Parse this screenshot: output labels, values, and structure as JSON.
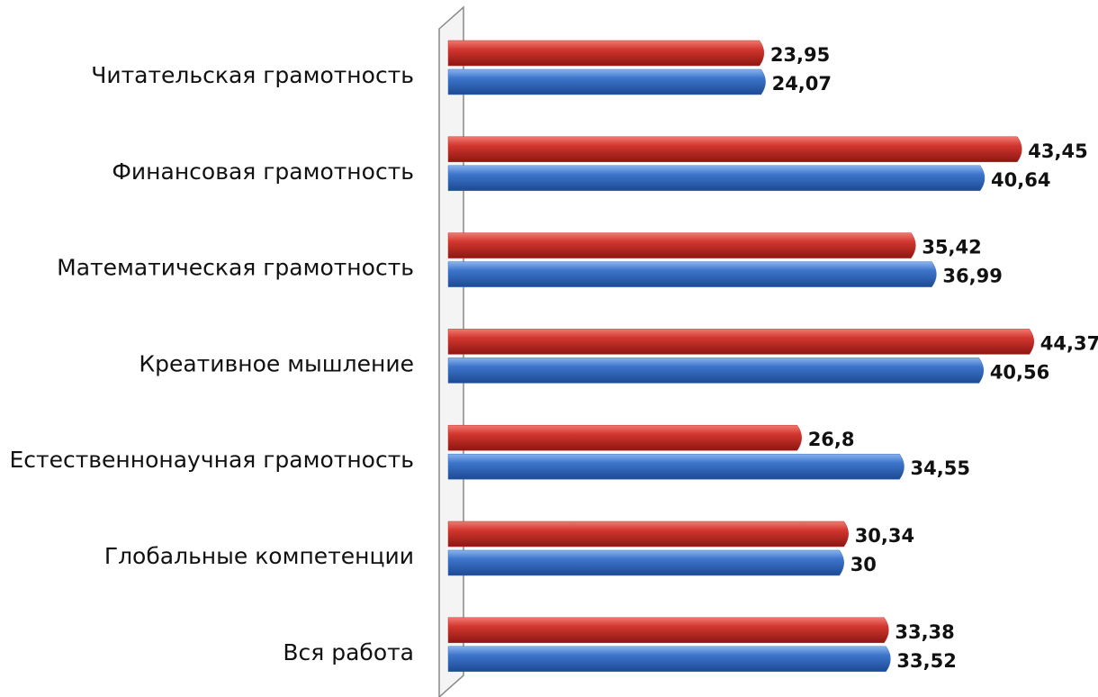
{
  "chart_data": {
    "type": "bar",
    "orientation": "horizontal",
    "categories": [
      "Читательская грамотность",
      "Финансовая грамотность",
      "Математическая грамотность",
      "Креативное мышление",
      "Естественнонаучная грамотность",
      "Глобальные компетенции",
      "Вся работа"
    ],
    "series": [
      {
        "color": "#c9302c",
        "values": [
          23.95,
          43.45,
          35.42,
          44.37,
          26.8,
          30.34,
          33.38
        ],
        "value_labels": [
          "23,95",
          "43,45",
          "35,42",
          "44,37",
          "26,8",
          "30,34",
          "33,38"
        ]
      },
      {
        "color": "#3b72c6",
        "values": [
          24.07,
          40.64,
          36.99,
          40.56,
          34.55,
          30,
          33.52
        ],
        "value_labels": [
          "24,07",
          "40,64",
          "36,99",
          "40,56",
          "34,55",
          "30",
          "33,52"
        ]
      }
    ]
  }
}
